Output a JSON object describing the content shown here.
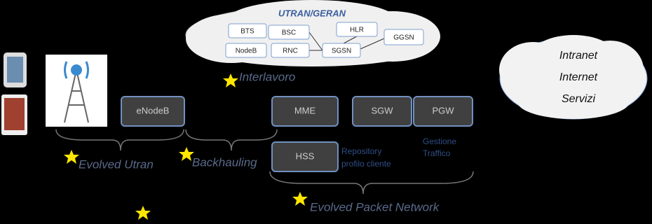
{
  "utran_cloud": {
    "title": "UTRAN/GERAN",
    "nodes": [
      "BTS",
      "BSC",
      "HLR",
      "GGSN",
      "NodeB",
      "RNC",
      "SGSN"
    ]
  },
  "internet_cloud": {
    "lines": [
      "Intranet",
      "Internet",
      "Servizi"
    ]
  },
  "network_nodes": [
    "eNodeB",
    "MME",
    "SGW",
    "PGW",
    "HSS"
  ],
  "notes": {
    "hss": [
      "Repository",
      "profilo cliente"
    ],
    "pgw": [
      "Gestione",
      "Traffico"
    ]
  },
  "sections": {
    "interworking": "Interlavoro",
    "evolved_utran": "Evolved Utran",
    "backhauling": "Backhauling",
    "evolved_packet_network": "Evolved Packet Network"
  }
}
